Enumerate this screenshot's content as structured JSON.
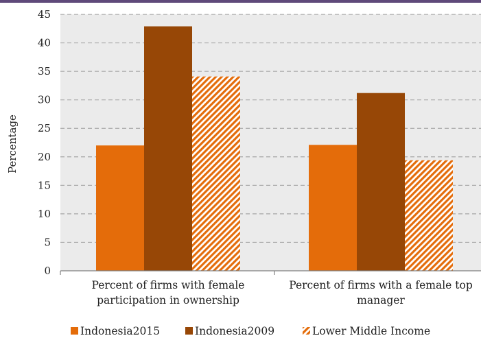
{
  "chart_data": {
    "type": "bar",
    "categories": [
      [
        "Percent of firms with female",
        "participation in ownership"
      ],
      [
        "Percent of firms with a female top",
        "manager"
      ]
    ],
    "series": [
      {
        "name": "Indonesia2015",
        "values": [
          22.0,
          22.1
        ],
        "color": "#E46C0A",
        "pattern": "solid"
      },
      {
        "name": "Indonesia2009",
        "values": [
          42.9,
          31.2
        ],
        "color": "#974706",
        "pattern": "solid"
      },
      {
        "name": "Lower Middle Income",
        "values": [
          34.1,
          19.4
        ],
        "color": "#E46C0A",
        "pattern": "diagonal-stripes"
      }
    ],
    "title": "",
    "xlabel": "",
    "ylabel": "Percentage",
    "ylim": [
      0,
      45
    ],
    "yticks": [
      0,
      5,
      10,
      15,
      20,
      25,
      30,
      35,
      40,
      45
    ],
    "grid": true,
    "legend_position": "bottom",
    "colors": {
      "plot_background": "#EBEBEB",
      "gridline": "#A6A6A6",
      "top_rule": "#5F497A"
    }
  }
}
